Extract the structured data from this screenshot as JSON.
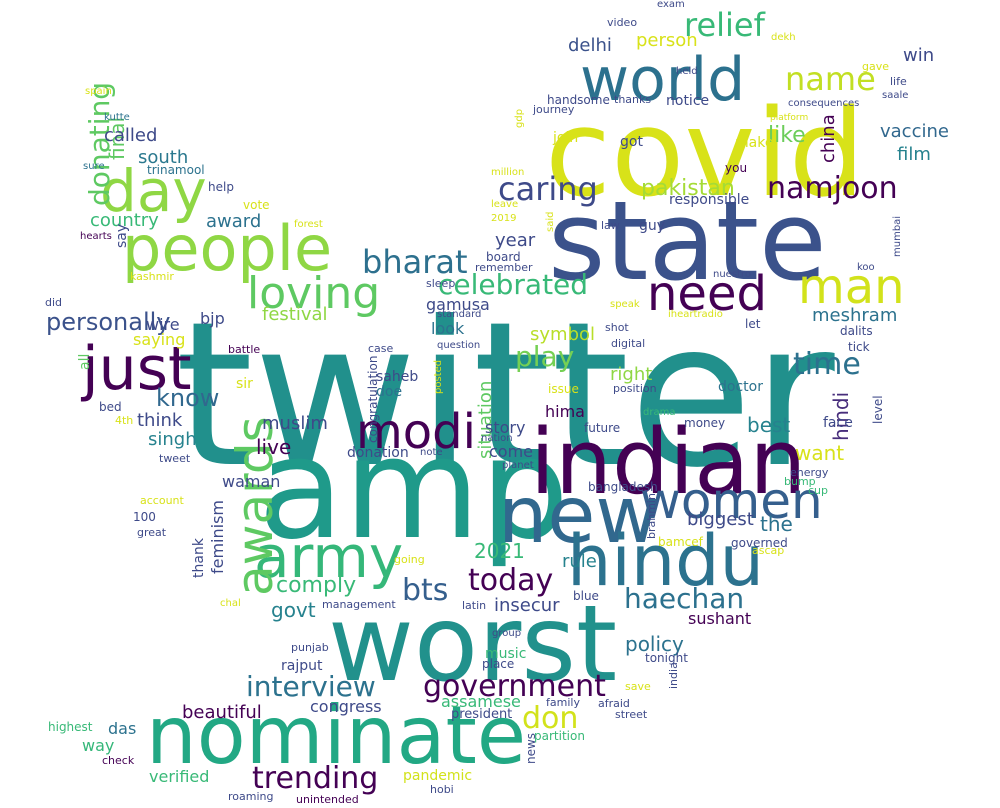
{
  "words": [
    {
      "text": "twitter",
      "color": "#21908c"
    },
    {
      "text": "amp",
      "color": "#1f9a8a"
    },
    {
      "text": "covid",
      "color": "#d8e219"
    },
    {
      "text": "state",
      "color": "#3b528b"
    },
    {
      "text": "worst",
      "color": "#21918c"
    },
    {
      "text": "nominate",
      "color": "#22a884"
    },
    {
      "text": "indian",
      "color": "#440154"
    },
    {
      "text": "new",
      "color": "#31688e"
    },
    {
      "text": "hindu",
      "color": "#2c728e"
    },
    {
      "text": "world",
      "color": "#2c718e"
    },
    {
      "text": "people",
      "color": "#8fd744"
    },
    {
      "text": "day",
      "color": "#8fd744"
    },
    {
      "text": "just",
      "color": "#440154"
    },
    {
      "text": "army",
      "color": "#35b779"
    },
    {
      "text": "women",
      "color": "#355f8d"
    },
    {
      "text": "awards",
      "color": "#5ec962"
    },
    {
      "text": "man",
      "color": "#d2e21b"
    },
    {
      "text": "need",
      "color": "#440154"
    },
    {
      "text": "modi",
      "color": "#440154"
    },
    {
      "text": "loving",
      "color": "#5ec962"
    },
    {
      "text": "bharat",
      "color": "#2d708e"
    },
    {
      "text": "relief",
      "color": "#38b977"
    },
    {
      "text": "name",
      "color": "#c2df23"
    },
    {
      "text": "namjoon",
      "color": "#440154"
    },
    {
      "text": "caring",
      "color": "#3e4a89"
    },
    {
      "text": "celebrated",
      "color": "#38b977"
    },
    {
      "text": "government",
      "color": "#440154"
    },
    {
      "text": "interview",
      "color": "#2c728e"
    },
    {
      "text": "trending",
      "color": "#440154"
    },
    {
      "text": "don",
      "color": "#d2e21b"
    },
    {
      "text": "haechan",
      "color": "#2c718e"
    },
    {
      "text": "today",
      "color": "#440154"
    },
    {
      "text": "bts",
      "color": "#355f8d"
    },
    {
      "text": "time",
      "color": "#2c718e"
    },
    {
      "text": "play",
      "color": "#75d054"
    },
    {
      "text": "donating",
      "color": "#5ec962"
    },
    {
      "text": "personally",
      "color": "#3b528b"
    },
    {
      "text": "know",
      "color": "#31688e"
    },
    {
      "text": "pakistan",
      "color": "#a5db36"
    },
    {
      "text": "like",
      "color": "#6ccd5a"
    },
    {
      "text": "delhi",
      "color": "#3b528b"
    },
    {
      "text": "person",
      "color": "#d8e219"
    },
    {
      "text": "win",
      "color": "#3e4a89"
    },
    {
      "text": "vaccine",
      "color": "#31688e"
    },
    {
      "text": "film",
      "color": "#26828e"
    },
    {
      "text": "china",
      "color": "#440154"
    },
    {
      "text": "final",
      "color": "#5ec962"
    },
    {
      "text": "called",
      "color": "#3e4a89"
    },
    {
      "text": "south",
      "color": "#2a788e"
    },
    {
      "text": "country",
      "color": "#38b977"
    },
    {
      "text": "award",
      "color": "#2c728e"
    },
    {
      "text": "festival",
      "color": "#8fd744"
    },
    {
      "text": "wire",
      "color": "#3e4a89"
    },
    {
      "text": "bjp",
      "color": "#3e4a89"
    },
    {
      "text": "gamusa",
      "color": "#3e4a89"
    },
    {
      "text": "symbol",
      "color": "#b8de29"
    },
    {
      "text": "meshram",
      "color": "#2c728e"
    },
    {
      "text": "year",
      "color": "#3e4a89"
    },
    {
      "text": "best",
      "color": "#26828e"
    },
    {
      "text": "hindi",
      "color": "#472d7b"
    },
    {
      "text": "want",
      "color": "#d8e219"
    },
    {
      "text": "live",
      "color": "#440154"
    },
    {
      "text": "think",
      "color": "#3e4a89"
    },
    {
      "text": "singh",
      "color": "#26828e"
    },
    {
      "text": "muslim",
      "color": "#3e4a89"
    },
    {
      "text": "look",
      "color": "#2c728e"
    },
    {
      "text": "right",
      "color": "#8fd744"
    },
    {
      "text": "situation",
      "color": "#5ec962"
    },
    {
      "text": "hima",
      "color": "#440154"
    },
    {
      "text": "story",
      "color": "#3e4a89"
    },
    {
      "text": "come",
      "color": "#3e4a89"
    },
    {
      "text": "biggest",
      "color": "#3e4a89"
    },
    {
      "text": "the",
      "color": "#2c728e"
    },
    {
      "text": "2021",
      "color": "#38b977"
    },
    {
      "text": "comply",
      "color": "#38b977"
    },
    {
      "text": "govt",
      "color": "#26828e"
    },
    {
      "text": "rule",
      "color": "#26828e"
    },
    {
      "text": "insecur",
      "color": "#3e4a89"
    },
    {
      "text": "policy",
      "color": "#2c728e"
    },
    {
      "text": "sushant",
      "color": "#440154"
    },
    {
      "text": "music",
      "color": "#38b977"
    },
    {
      "text": "beautiful",
      "color": "#440154"
    },
    {
      "text": "congress",
      "color": "#3e4a89"
    },
    {
      "text": "assamese",
      "color": "#38b977"
    },
    {
      "text": "president",
      "color": "#3e4a89"
    },
    {
      "text": "das",
      "color": "#2c728e"
    },
    {
      "text": "way",
      "color": "#35b779"
    },
    {
      "text": "verified",
      "color": "#38b977"
    },
    {
      "text": "pandemic",
      "color": "#d2e21b"
    },
    {
      "text": "feminism",
      "color": "#3e4a89"
    },
    {
      "text": "thank",
      "color": "#3e4a89"
    },
    {
      "text": "waman",
      "color": "#3e4a89"
    },
    {
      "text": "saying",
      "color": "#d8e219"
    },
    {
      "text": "sir",
      "color": "#d8e219"
    },
    {
      "text": "saheb",
      "color": "#3e4a89"
    },
    {
      "text": "doe",
      "color": "#2c728e"
    },
    {
      "text": "donation",
      "color": "#3e4a89"
    },
    {
      "text": "make",
      "color": "#d8e219"
    },
    {
      "text": "got",
      "color": "#3e4a89"
    },
    {
      "text": "join",
      "color": "#d8e219"
    },
    {
      "text": "notice",
      "color": "#3e4a89"
    },
    {
      "text": "guy",
      "color": "#3e4a89"
    },
    {
      "text": "responsible",
      "color": "#3e4a89"
    },
    {
      "text": "you",
      "color": "#440154"
    },
    {
      "text": "face",
      "color": "#3e4a89"
    },
    {
      "text": "doctor",
      "color": "#2c728e"
    },
    {
      "text": "rajput",
      "color": "#3e4a89"
    },
    {
      "text": "board",
      "color": "#3e4a89"
    },
    {
      "text": "say",
      "color": "#3e4a89"
    },
    {
      "text": "help",
      "color": "#3e4a89"
    },
    {
      "text": "vote",
      "color": "#d8e219"
    },
    {
      "text": "trinamool",
      "color": "#2c728e"
    },
    {
      "text": "all",
      "color": "#5ec962"
    },
    {
      "text": "did",
      "color": "#3e4a89"
    },
    {
      "text": "bed",
      "color": "#3e4a89"
    },
    {
      "text": "100",
      "color": "#3e4a89"
    },
    {
      "text": "money",
      "color": "#3e4a89"
    },
    {
      "text": "future",
      "color": "#3e4a89"
    },
    {
      "text": "dalits",
      "color": "#3e4a89"
    },
    {
      "text": "tick",
      "color": "#3e4a89"
    },
    {
      "text": "level",
      "color": "#3e4a89"
    },
    {
      "text": "let",
      "color": "#3e4a89"
    },
    {
      "text": "energy",
      "color": "#3e4a89"
    },
    {
      "text": "bump",
      "color": "#38b977"
    },
    {
      "text": "cup",
      "color": "#38b977"
    },
    {
      "text": "governed",
      "color": "#3e4a89"
    },
    {
      "text": "ascap",
      "color": "#d8e219"
    },
    {
      "text": "bamcef",
      "color": "#d8e219"
    },
    {
      "text": "blue",
      "color": "#3e4a89"
    },
    {
      "text": "tonight",
      "color": "#3e4a89"
    },
    {
      "text": "india",
      "color": "#3e4a89"
    },
    {
      "text": "save",
      "color": "#d8e219"
    },
    {
      "text": "street",
      "color": "#3e4a89"
    },
    {
      "text": "afraid",
      "color": "#3e4a89"
    },
    {
      "text": "family",
      "color": "#3e4a89"
    },
    {
      "text": "partition",
      "color": "#38b977"
    },
    {
      "text": "news",
      "color": "#3e4a89"
    },
    {
      "text": "hobi",
      "color": "#3e4a89"
    },
    {
      "text": "roaming",
      "color": "#3e4a89"
    },
    {
      "text": "unintended",
      "color": "#440154"
    },
    {
      "text": "check",
      "color": "#440154"
    },
    {
      "text": "highest",
      "color": "#38b977"
    },
    {
      "text": "chal",
      "color": "#d8e219"
    },
    {
      "text": "great",
      "color": "#3e4a89"
    },
    {
      "text": "account",
      "color": "#d8e219"
    },
    {
      "text": "tweet",
      "color": "#3e4a89"
    },
    {
      "text": "4th",
      "color": "#d8e219"
    },
    {
      "text": "battle",
      "color": "#440154"
    },
    {
      "text": "kashmir",
      "color": "#d8e219"
    },
    {
      "text": "hearts",
      "color": "#440154"
    },
    {
      "text": "sure",
      "color": "#2c728e"
    },
    {
      "text": "kutte",
      "color": "#2c728e"
    },
    {
      "text": "spain",
      "color": "#d8e219"
    },
    {
      "text": "forest",
      "color": "#d8e219"
    },
    {
      "text": "remember",
      "color": "#3e4a89"
    },
    {
      "text": "2019",
      "color": "#d8e219"
    },
    {
      "text": "leave",
      "color": "#d8e219"
    },
    {
      "text": "said",
      "color": "#d8e219"
    },
    {
      "text": "million",
      "color": "#d8e219"
    },
    {
      "text": "gdp",
      "color": "#d8e219"
    },
    {
      "text": "journey",
      "color": "#3e4a89"
    },
    {
      "text": "handsome",
      "color": "#3e4a89"
    },
    {
      "text": "thanks",
      "color": "#3e4a89"
    },
    {
      "text": "held",
      "color": "#3e4a89"
    },
    {
      "text": "gave",
      "color": "#d8e219"
    },
    {
      "text": "life",
      "color": "#3e4a89"
    },
    {
      "text": "saale",
      "color": "#3e4a89"
    },
    {
      "text": "consequences",
      "color": "#3e4a89"
    },
    {
      "text": "platform",
      "color": "#d8e219"
    },
    {
      "text": "mumbai",
      "color": "#3e4a89"
    },
    {
      "text": "koo",
      "color": "#3e4a89"
    },
    {
      "text": "nuestro",
      "color": "#3e4a89"
    },
    {
      "text": "iheartradio",
      "color": "#d8e219"
    },
    {
      "text": "speak",
      "color": "#d8e219"
    },
    {
      "text": "shot",
      "color": "#3e4a89"
    },
    {
      "text": "law",
      "color": "#3e4a89"
    },
    {
      "text": "sleep",
      "color": "#3e4a89"
    },
    {
      "text": "standard",
      "color": "#3e4a89"
    },
    {
      "text": "question",
      "color": "#3e4a89"
    },
    {
      "text": "case",
      "color": "#3e4a89"
    },
    {
      "text": "digital",
      "color": "#3e4a89"
    },
    {
      "text": "position",
      "color": "#3e4a89"
    },
    {
      "text": "issue",
      "color": "#d8e219"
    },
    {
      "text": "posted",
      "color": "#d8e219"
    },
    {
      "text": "drama",
      "color": "#38b977"
    },
    {
      "text": "congratulation",
      "color": "#3e4a89"
    },
    {
      "text": "note",
      "color": "#3e4a89"
    },
    {
      "text": "nation",
      "color": "#3e4a89"
    },
    {
      "text": "planet",
      "color": "#3e4a89"
    },
    {
      "text": "bangladesh",
      "color": "#3e4a89"
    },
    {
      "text": "brahmin",
      "color": "#3e4a89"
    },
    {
      "text": "going",
      "color": "#d8e219"
    },
    {
      "text": "management",
      "color": "#3e4a89"
    },
    {
      "text": "latin",
      "color": "#3e4a89"
    },
    {
      "text": "group",
      "color": "#3e4a89"
    },
    {
      "text": "punjab",
      "color": "#3e4a89"
    },
    {
      "text": "place",
      "color": "#3e4a89"
    },
    {
      "text": "video",
      "color": "#3e4a89"
    },
    {
      "text": "exam",
      "color": "#3e4a89"
    },
    {
      "text": "dekh",
      "color": "#d8e219"
    }
  ]
}
